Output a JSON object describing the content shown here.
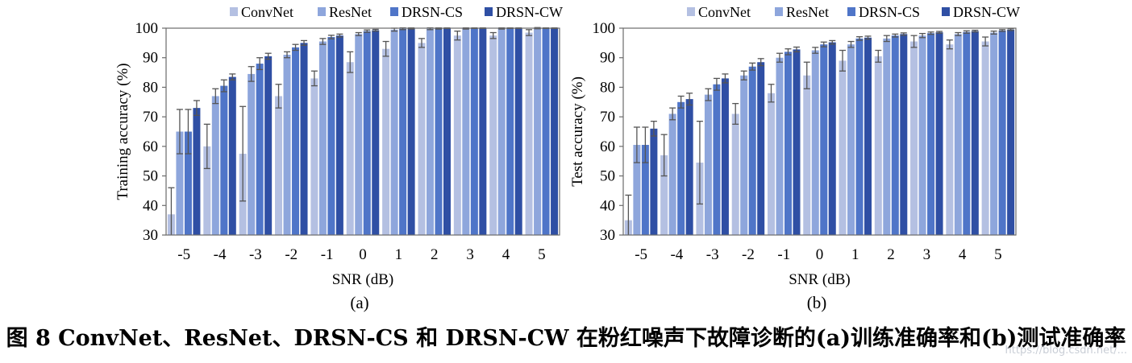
{
  "caption": "图 8 ConvNet、ResNet、DRSN-CS 和 DRSN-CW 在粉红噪声下故障诊断的(a)训练准确率和(b)测试准确率",
  "watermark": "https://blog.csdn.net/...",
  "chart_data": [
    {
      "type": "bar",
      "panel_label": "(a)",
      "categories": [
        "-5",
        "-4",
        "-3",
        "-2",
        "-1",
        "0",
        "1",
        "2",
        "3",
        "4",
        "5"
      ],
      "xlabel": "SNR (dB)",
      "ylabel": "Training accuracy (%)",
      "ylim": [
        30,
        100
      ],
      "yticks": [
        30,
        40,
        50,
        60,
        70,
        80,
        90,
        100
      ],
      "legend_position": "top",
      "grid": false,
      "series": [
        {
          "name": "ConvNet",
          "color": "#b4c0e2",
          "values": [
            37,
            60,
            57.5,
            77,
            83,
            88.5,
            93,
            95,
            97.5,
            97.5,
            98.5
          ],
          "errors": [
            9,
            7.5,
            16,
            4,
            2.5,
            3.5,
            2.5,
            1.5,
            1.5,
            1,
            1
          ]
        },
        {
          "name": "ResNet",
          "color": "#8ea6dc",
          "values": [
            65,
            77,
            84.5,
            91,
            95.5,
            98,
            99.5,
            99.8,
            99.9,
            99.9,
            100
          ],
          "errors": [
            7.5,
            2.5,
            2.5,
            1,
            1,
            0.5,
            0.5,
            0.3,
            0.2,
            0.2,
            0.2
          ]
        },
        {
          "name": "DRSN-CS",
          "color": "#4f75c8",
          "values": [
            65,
            80.5,
            88,
            93.5,
            97,
            99,
            99.8,
            99.9,
            100,
            100,
            100
          ],
          "errors": [
            7.5,
            2,
            2,
            1,
            0.6,
            0.4,
            0.3,
            0.2,
            0.1,
            0.1,
            0.1
          ]
        },
        {
          "name": "DRSN-CW",
          "color": "#2f4fa4",
          "values": [
            73,
            83.5,
            90.5,
            95,
            97.5,
            99.3,
            99.9,
            100,
            100,
            100,
            100
          ],
          "errors": [
            2.5,
            1,
            1,
            0.8,
            0.5,
            0.3,
            0.2,
            0.1,
            0.1,
            0.1,
            0.1
          ]
        }
      ]
    },
    {
      "type": "bar",
      "panel_label": "(b)",
      "categories": [
        "-5",
        "-4",
        "-3",
        "-2",
        "-1",
        "0",
        "1",
        "2",
        "3",
        "4",
        "5"
      ],
      "xlabel": "SNR (dB)",
      "ylabel": "Test accuracy (%)",
      "ylim": [
        30,
        100
      ],
      "yticks": [
        30,
        40,
        50,
        60,
        70,
        80,
        90,
        100
      ],
      "legend_position": "top",
      "grid": false,
      "series": [
        {
          "name": "ConvNet",
          "color": "#b4c0e2",
          "values": [
            35,
            57,
            54.5,
            71,
            78,
            84,
            89,
            90.5,
            95.5,
            94.5,
            95.5
          ],
          "errors": [
            8.5,
            7,
            14,
            3.5,
            3,
            4.5,
            3.5,
            2,
            2,
            1.5,
            1.5
          ]
        },
        {
          "name": "ResNet",
          "color": "#8ea6dc",
          "values": [
            60.5,
            71,
            77.5,
            84,
            90,
            92.5,
            94.5,
            96.5,
            97.5,
            98,
            98.5
          ],
          "errors": [
            6,
            2,
            2,
            1.5,
            1.5,
            1,
            1,
            1,
            0.7,
            0.5,
            0.5
          ]
        },
        {
          "name": "DRSN-CS",
          "color": "#4f75c8",
          "values": [
            60.5,
            75,
            81,
            87,
            92,
            94.5,
            96.5,
            97.5,
            98.3,
            98.7,
            99.2
          ],
          "errors": [
            6,
            2,
            2,
            1.2,
            1,
            0.8,
            0.6,
            0.5,
            0.4,
            0.4,
            0.3
          ]
        },
        {
          "name": "DRSN-CW",
          "color": "#2f4fa4",
          "values": [
            66,
            76,
            83,
            88.5,
            92.8,
            95.2,
            96.8,
            98,
            98.6,
            99,
            99.5
          ],
          "errors": [
            2.5,
            2,
            1.5,
            1.2,
            0.8,
            0.6,
            0.5,
            0.4,
            0.3,
            0.3,
            0.3
          ]
        }
      ]
    }
  ]
}
